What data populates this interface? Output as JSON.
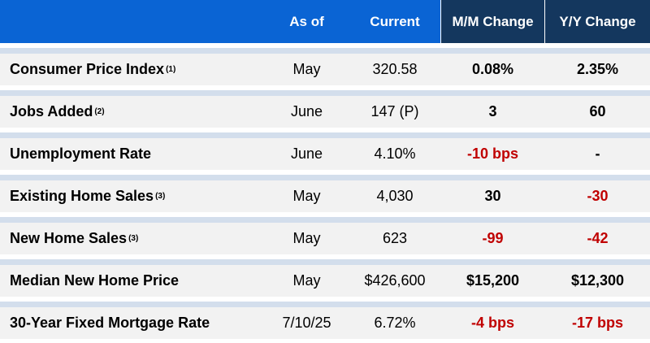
{
  "header": {
    "label": "",
    "as_of": "As of",
    "current": "Current",
    "mm_change": "M/M Change",
    "yy_change": "Y/Y Change"
  },
  "colors": {
    "header_blue": "#0a64d4",
    "header_navy": "#14375e",
    "row_bg": "#f2f2f2",
    "divider": "#d3deec",
    "negative": "#c00000"
  },
  "rows": [
    {
      "label": "Consumer Price Index ",
      "note": "(1)",
      "as_of": "May",
      "current": "320.58",
      "mm": "0.08%",
      "yy": "2.35%",
      "mm_neg": false,
      "yy_neg": false
    },
    {
      "label": "Jobs Added",
      "note": "(2)",
      "as_of": "June",
      "current": "147 (P)",
      "mm": "3",
      "yy": "60",
      "mm_neg": false,
      "yy_neg": false
    },
    {
      "label": "Unemployment Rate",
      "note": "",
      "as_of": "June",
      "current": "4.10%",
      "mm": "-10 bps",
      "yy": "-",
      "mm_neg": true,
      "yy_neg": false
    },
    {
      "label": "Existing Home Sales",
      "note": "(3)",
      "as_of": "May",
      "current": "4,030",
      "mm": "30",
      "yy": "-30",
      "mm_neg": false,
      "yy_neg": true
    },
    {
      "label": "New Home Sales",
      "note": "(3)",
      "as_of": "May",
      "current": "623",
      "mm": "-99",
      "yy": "-42",
      "mm_neg": true,
      "yy_neg": true
    },
    {
      "label": "Median New Home Price",
      "note": "",
      "as_of": "May",
      "current": "$426,600",
      "mm": "$15,200",
      "yy": "$12,300",
      "mm_neg": false,
      "yy_neg": false
    },
    {
      "label": "30-Year Fixed Mortgage Rate",
      "note": "",
      "as_of": "7/10/25",
      "current": "6.72%",
      "mm": "-4 bps",
      "yy": "-17 bps",
      "mm_neg": true,
      "yy_neg": true
    }
  ]
}
